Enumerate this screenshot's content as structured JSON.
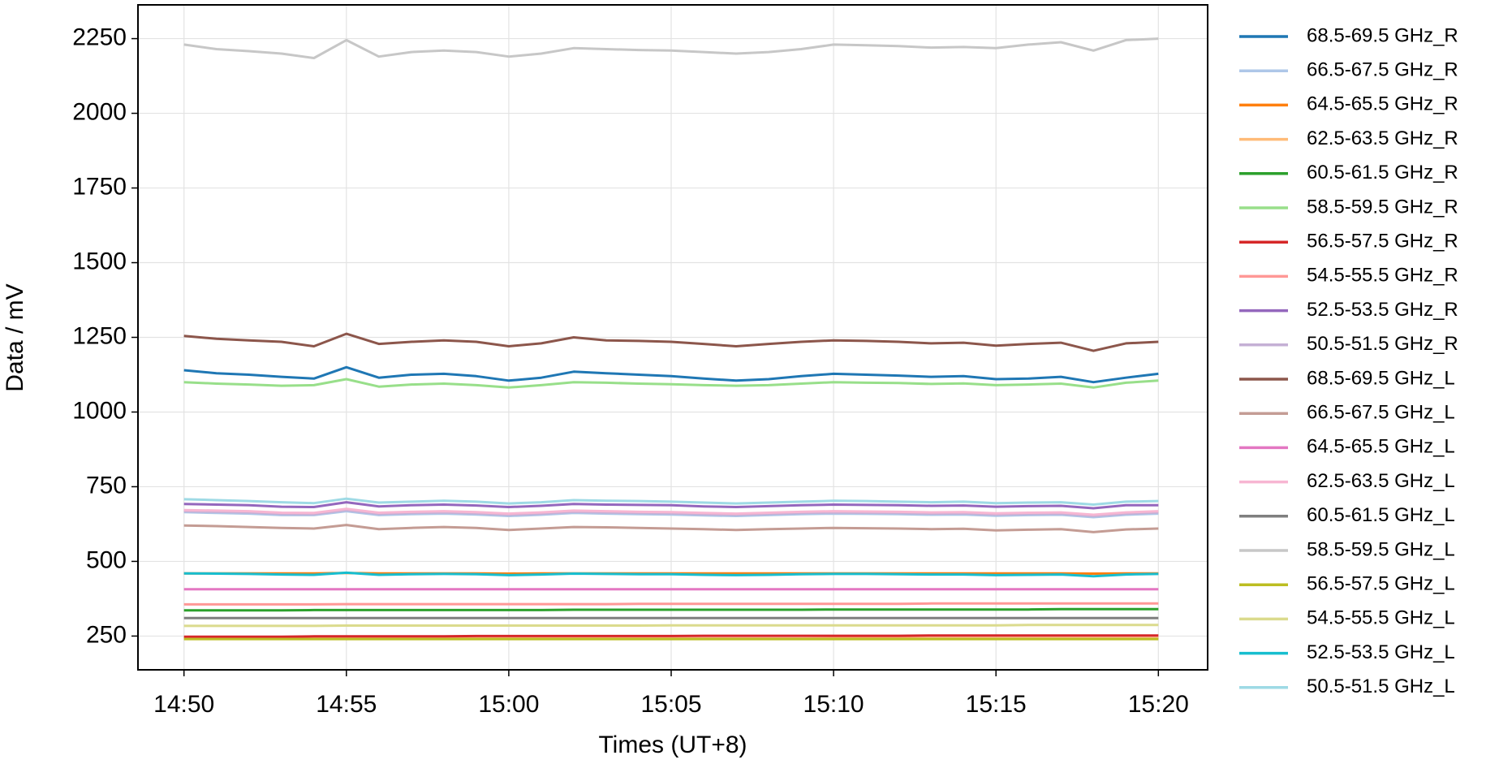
{
  "chart_data": {
    "type": "line",
    "xlabel": "Times (UT+8)",
    "ylabel": "Data / mV",
    "x": [
      "14:50",
      "14:51",
      "14:52",
      "14:53",
      "14:54",
      "14:55",
      "14:56",
      "14:57",
      "14:58",
      "14:59",
      "15:00",
      "15:01",
      "15:02",
      "15:03",
      "15:04",
      "15:05",
      "15:06",
      "15:07",
      "15:08",
      "15:09",
      "15:10",
      "15:11",
      "15:12",
      "15:13",
      "15:14",
      "15:15",
      "15:16",
      "15:17",
      "15:18",
      "15:19",
      "15:20"
    ],
    "xlim": [
      "14:48:35",
      "15:21:31"
    ],
    "xticks": [
      "14:50",
      "14:55",
      "15:00",
      "15:05",
      "15:10",
      "15:15",
      "15:20"
    ],
    "ylim": [
      137,
      2363
    ],
    "yticks": [
      250,
      500,
      750,
      1000,
      1250,
      1500,
      1750,
      2000,
      2250
    ],
    "grid": true,
    "legend": "outside right",
    "series": [
      {
        "name": "68.5-69.5 GHz_R",
        "color": "#1f77b4",
        "values": [
          1140,
          1130,
          1125,
          1118,
          1112,
          1150,
          1115,
          1125,
          1128,
          1120,
          1105,
          1115,
          1135,
          1130,
          1125,
          1120,
          1112,
          1105,
          1110,
          1120,
          1128,
          1125,
          1122,
          1118,
          1120,
          1110,
          1112,
          1118,
          1100,
          1115,
          1128
        ]
      },
      {
        "name": "66.5-67.5 GHz_R",
        "color": "#aec7e8",
        "values": [
          665,
          662,
          660,
          655,
          655,
          668,
          655,
          658,
          660,
          657,
          652,
          656,
          662,
          660,
          658,
          657,
          654,
          652,
          655,
          658,
          660,
          659,
          658,
          656,
          657,
          653,
          655,
          656,
          648,
          656,
          660
        ]
      },
      {
        "name": "64.5-65.5 GHz_R",
        "color": "#ff7f0e",
        "values": [
          460,
          460,
          460,
          460,
          460,
          461,
          460,
          460,
          460,
          460,
          459,
          460,
          460,
          460,
          460,
          460,
          460,
          460,
          460,
          460,
          460,
          460,
          460,
          460,
          460,
          460,
          460,
          460,
          459,
          460,
          460
        ]
      },
      {
        "name": "62.5-63.5 GHz_R",
        "color": "#ffbb78",
        "values": [
          242,
          242,
          242,
          242,
          242,
          242,
          242,
          242,
          242,
          242,
          242,
          242,
          242,
          242,
          242,
          242,
          242,
          242,
          242,
          242,
          243,
          243,
          243,
          243,
          243,
          243,
          243,
          243,
          243,
          243,
          243
        ]
      },
      {
        "name": "60.5-61.5 GHz_R",
        "color": "#2ca02c",
        "values": [
          336,
          336,
          336,
          336,
          337,
          337,
          337,
          337,
          337,
          337,
          337,
          337,
          338,
          338,
          338,
          338,
          338,
          338,
          338,
          338,
          339,
          339,
          339,
          339,
          339,
          339,
          339,
          340,
          340,
          340,
          340
        ]
      },
      {
        "name": "58.5-59.5 GHz_R",
        "color": "#98df8a",
        "values": [
          1100,
          1095,
          1092,
          1088,
          1090,
          1110,
          1085,
          1092,
          1095,
          1090,
          1082,
          1090,
          1100,
          1098,
          1095,
          1093,
          1090,
          1088,
          1090,
          1095,
          1100,
          1098,
          1097,
          1094,
          1096,
          1090,
          1092,
          1095,
          1082,
          1098,
          1105
        ]
      },
      {
        "name": "56.5-57.5 GHz_R",
        "color": "#d62728",
        "values": [
          248,
          248,
          248,
          248,
          249,
          249,
          249,
          249,
          249,
          250,
          250,
          250,
          250,
          250,
          250,
          250,
          251,
          251,
          251,
          251,
          251,
          251,
          251,
          252,
          252,
          252,
          252,
          252,
          252,
          252,
          252
        ]
      },
      {
        "name": "54.5-55.5 GHz_R",
        "color": "#ff9896",
        "values": [
          356,
          356,
          356,
          356,
          356,
          357,
          357,
          357,
          357,
          357,
          357,
          357,
          357,
          357,
          358,
          358,
          358,
          358,
          358,
          358,
          358,
          358,
          358,
          359,
          359,
          359,
          359,
          359,
          359,
          359,
          359
        ]
      },
      {
        "name": "52.5-53.5 GHz_R",
        "color": "#9467bd",
        "values": [
          692,
          690,
          688,
          683,
          682,
          698,
          684,
          688,
          690,
          687,
          682,
          686,
          692,
          690,
          689,
          688,
          684,
          682,
          685,
          688,
          690,
          689,
          688,
          686,
          687,
          683,
          685,
          686,
          678,
          688,
          688
        ]
      },
      {
        "name": "50.5-51.5 GHz_R",
        "color": "#c5b0d5",
        "values": [
          668,
          666,
          664,
          659,
          658,
          672,
          659,
          662,
          664,
          661,
          656,
          660,
          666,
          664,
          662,
          661,
          658,
          656,
          659,
          662,
          664,
          663,
          662,
          660,
          661,
          657,
          659,
          660,
          652,
          660,
          664
        ]
      },
      {
        "name": "68.5-69.5 GHz_L",
        "color": "#8c564b",
        "values": [
          1255,
          1245,
          1240,
          1235,
          1220,
          1262,
          1228,
          1235,
          1240,
          1235,
          1220,
          1230,
          1250,
          1240,
          1238,
          1235,
          1228,
          1220,
          1228,
          1235,
          1240,
          1238,
          1235,
          1230,
          1232,
          1222,
          1228,
          1232,
          1205,
          1230,
          1235
        ]
      },
      {
        "name": "66.5-67.5 GHz_L",
        "color": "#c49c94",
        "values": [
          620,
          618,
          615,
          612,
          610,
          622,
          608,
          612,
          615,
          612,
          605,
          610,
          615,
          614,
          612,
          610,
          608,
          605,
          608,
          610,
          612,
          611,
          610,
          608,
          609,
          604,
          606,
          608,
          598,
          607,
          610
        ]
      },
      {
        "name": "64.5-65.5 GHz_L",
        "color": "#e377c2",
        "values": [
          407,
          407,
          407,
          407,
          407,
          407,
          407,
          407,
          407,
          407,
          407,
          407,
          407,
          407,
          407,
          407,
          407,
          407,
          407,
          407,
          407,
          407,
          407,
          407,
          407,
          407,
          407,
          407,
          407,
          407,
          407
        ]
      },
      {
        "name": "62.5-63.5 GHz_L",
        "color": "#f7b6d2",
        "values": [
          672,
          670,
          668,
          663,
          662,
          676,
          663,
          666,
          668,
          665,
          660,
          664,
          670,
          668,
          666,
          665,
          662,
          660,
          663,
          666,
          668,
          667,
          666,
          664,
          665,
          661,
          663,
          664,
          656,
          664,
          668
        ]
      },
      {
        "name": "60.5-61.5 GHz_L",
        "color": "#7f7f7f",
        "values": [
          310,
          310,
          310,
          310,
          310,
          310,
          310,
          310,
          310,
          310,
          310,
          310,
          310,
          310,
          310,
          310,
          310,
          310,
          310,
          310,
          310,
          310,
          310,
          310,
          310,
          310,
          310,
          310,
          310,
          310,
          310
        ]
      },
      {
        "name": "58.5-59.5 GHz_L",
        "color": "#c7c7c7",
        "values": [
          2230,
          2215,
          2208,
          2200,
          2185,
          2245,
          2190,
          2205,
          2210,
          2205,
          2190,
          2200,
          2218,
          2215,
          2212,
          2210,
          2205,
          2200,
          2205,
          2215,
          2230,
          2228,
          2225,
          2220,
          2222,
          2218,
          2230,
          2238,
          2210,
          2245,
          2250
        ]
      },
      {
        "name": "56.5-57.5 GHz_L",
        "color": "#bcbd22",
        "values": [
          240,
          240,
          240,
          240,
          240,
          240,
          240,
          240,
          240,
          240,
          240,
          240,
          240,
          240,
          240,
          240,
          240,
          240,
          240,
          240,
          240,
          240,
          240,
          240,
          240,
          240,
          240,
          240,
          240,
          240,
          240
        ]
      },
      {
        "name": "54.5-55.5 GHz_L",
        "color": "#dbdb8d",
        "values": [
          284,
          284,
          284,
          284,
          284,
          285,
          285,
          285,
          285,
          285,
          285,
          285,
          285,
          285,
          285,
          286,
          286,
          286,
          286,
          286,
          286,
          286,
          286,
          286,
          286,
          286,
          287,
          287,
          287,
          287,
          287
        ]
      },
      {
        "name": "52.5-53.5 GHz_L",
        "color": "#17becf",
        "values": [
          460,
          459,
          458,
          456,
          455,
          462,
          455,
          457,
          458,
          457,
          454,
          456,
          459,
          458,
          457,
          457,
          455,
          454,
          455,
          457,
          458,
          458,
          457,
          456,
          456,
          454,
          455,
          456,
          450,
          456,
          458
        ]
      },
      {
        "name": "50.5-51.5 GHz_L",
        "color": "#9edae5",
        "values": [
          708,
          705,
          702,
          698,
          695,
          710,
          697,
          700,
          703,
          700,
          694,
          698,
          705,
          703,
          702,
          700,
          697,
          694,
          697,
          700,
          703,
          702,
          700,
          698,
          700,
          695,
          697,
          698,
          690,
          700,
          702
        ]
      }
    ]
  }
}
